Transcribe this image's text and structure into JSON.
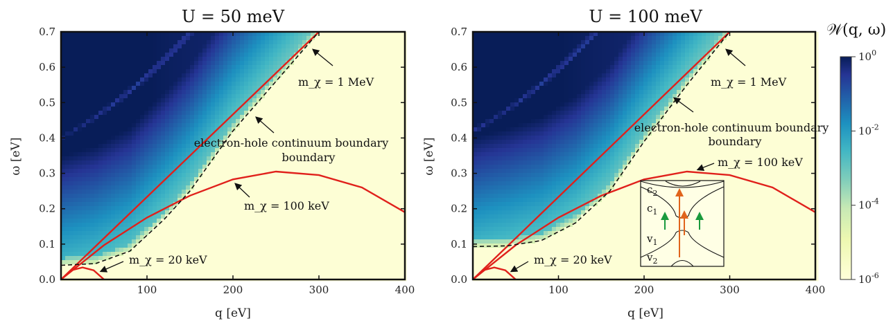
{
  "chart_data": [
    {
      "type": "heatmap",
      "title": "U = 50 meV",
      "xlabel": "q [eV]",
      "ylabel": "ω [eV]",
      "xlim": [
        0,
        400
      ],
      "ylim": [
        0,
        0.7
      ],
      "x_ticks": [
        "100",
        "200",
        "300",
        "400"
      ],
      "y_ticks": [
        "0.0",
        "0.1",
        "0.2",
        "0.3",
        "0.4",
        "0.5",
        "0.6",
        "0.7"
      ],
      "plasmon_omega": 0.4,
      "continuum_gap": 0.04,
      "series": [
        {
          "name": "m_χ = 1 MeV",
          "x": [
            0,
            300
          ],
          "y": [
            0,
            0.7
          ]
        },
        {
          "name": "m_χ = 100 keV",
          "x": [
            0,
            50,
            100,
            150,
            200,
            250,
            300,
            350,
            400
          ],
          "y": [
            0,
            0.097,
            0.175,
            0.237,
            0.283,
            0.305,
            0.295,
            0.26,
            0.19
          ]
        },
        {
          "name": "m_χ = 20 keV",
          "x": [
            0,
            12,
            25,
            38,
            50
          ],
          "y": [
            0,
            0.026,
            0.034,
            0.026,
            0
          ]
        },
        {
          "name": "electron-hole continuum boundary",
          "x": [
            0,
            40,
            80,
            120,
            150,
            200,
            250,
            300
          ],
          "y": [
            0.04,
            0.045,
            0.08,
            0.17,
            0.25,
            0.42,
            0.56,
            0.7
          ]
        }
      ],
      "annotations": [
        "m_χ = 1 MeV",
        "electron-hole continuum boundary",
        "m_χ = 100 keV",
        "m_χ = 20 keV"
      ]
    },
    {
      "type": "heatmap",
      "title": "U = 100 meV",
      "xlabel": "q [eV]",
      "ylabel": "ω [eV]",
      "xlim": [
        0,
        400
      ],
      "ylim": [
        0,
        0.7
      ],
      "x_ticks": [
        "100",
        "200",
        "300",
        "400"
      ],
      "y_ticks": [
        "0.0",
        "0.1",
        "0.2",
        "0.3",
        "0.4",
        "0.5",
        "0.6",
        "0.7"
      ],
      "plasmon_omega": 0.42,
      "continuum_gap": 0.093,
      "series": [
        {
          "name": "m_χ = 1 MeV",
          "x": [
            0,
            300
          ],
          "y": [
            0,
            0.7
          ]
        },
        {
          "name": "m_χ = 100 keV",
          "x": [
            0,
            50,
            100,
            150,
            200,
            250,
            300,
            350,
            400
          ],
          "y": [
            0,
            0.097,
            0.175,
            0.237,
            0.283,
            0.305,
            0.295,
            0.26,
            0.19
          ]
        },
        {
          "name": "m_χ = 20 keV",
          "x": [
            0,
            12,
            25,
            38,
            50
          ],
          "y": [
            0,
            0.026,
            0.034,
            0.026,
            0
          ]
        },
        {
          "name": "electron-hole continuum boundary",
          "x": [
            0,
            40,
            80,
            120,
            160,
            200,
            250,
            300
          ],
          "y": [
            0.093,
            0.095,
            0.11,
            0.16,
            0.25,
            0.39,
            0.55,
            0.7
          ]
        }
      ],
      "annotations": [
        "m_χ = 1 MeV",
        "electron-hole continuum boundary",
        "m_χ = 100 keV",
        "m_χ = 20 keV"
      ],
      "inset": {
        "labels": [
          "c2",
          "c1",
          "v1",
          "v2"
        ]
      }
    }
  ],
  "colorbar": {
    "title": "𝒲(q, ω)",
    "ticks": [
      "10^0",
      "10^-2",
      "10^-4",
      "10^-6"
    ],
    "scale": "log",
    "range": [
      1e-06,
      1
    ]
  },
  "colors": {
    "curve": "#e0201b",
    "boundary": "#111111",
    "arrow_green": "#1a9a3c",
    "arrow_orange": "#e0641b"
  }
}
